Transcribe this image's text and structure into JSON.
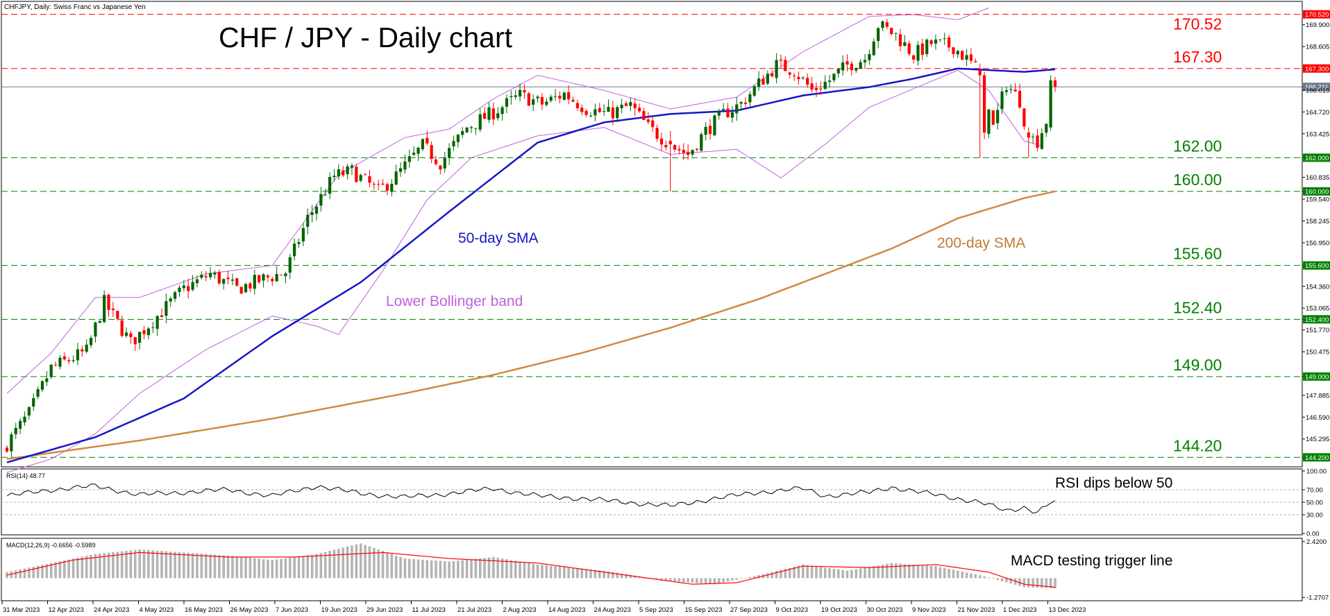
{
  "header": {
    "symbol_info": "CHFJPY, Daily: Swiss Franc vs Japanese Yen",
    "title": "CHF / JPY - Daily chart"
  },
  "colors": {
    "bull": "#006400",
    "bear": "#ff0000",
    "sma50": "#1515c8",
    "sma200": "#d08a40",
    "bollinger": "#c060e0",
    "support": "#008000",
    "resistance": "#ff0000",
    "rsi": "#000000",
    "macd_signal": "#ff0000",
    "macd_hist": "#b4b4b4",
    "current_price": "#6c7b8b"
  },
  "chart_data": [
    {
      "type": "line",
      "name": "price",
      "ylim": [
        143.8,
        171.0
      ],
      "grid": false,
      "y_ticks": [
        "170.520",
        "169.900",
        "168.605",
        "167.300",
        "166.211",
        "166.015",
        "164.720",
        "163.425",
        "162.000",
        "160.835",
        "160.000",
        "159.540",
        "158.245",
        "156.950",
        "155.600",
        "154.360",
        "153.065",
        "152.400",
        "151.770",
        "150.475",
        "149.000",
        "147.885",
        "146.590",
        "145.295",
        "144.200"
      ],
      "x_ticks": [
        "31 Mar 2023",
        "12 Apr 2023",
        "24 Apr 2023",
        "4 May 2023",
        "16 May 2023",
        "26 May 2023",
        "7 Jun 2023",
        "19 Jun 2023",
        "29 Jun 2023",
        "11 Jul 2023",
        "21 Jul 2023",
        "2 Aug 2023",
        "14 Aug 2023",
        "24 Aug 2023",
        "5 Sep 2023",
        "15 Sep 2023",
        "27 Sep 2023",
        "9 Oct 2023",
        "19 Oct 2023",
        "30 Oct 2023",
        "9 Nov 2023",
        "21 Nov 2023",
        "1 Dec 2023",
        "13 Dec 2023"
      ],
      "close_path": [
        [
          0,
          145.0
        ],
        [
          5,
          146.8
        ],
        [
          10,
          149.5
        ],
        [
          18,
          150.5
        ],
        [
          22,
          153.4
        ],
        [
          28,
          151.0
        ],
        [
          34,
          152.6
        ],
        [
          40,
          154.2
        ],
        [
          46,
          155.1
        ],
        [
          52,
          154.2
        ],
        [
          58,
          154.8
        ],
        [
          63,
          155.2
        ],
        [
          68,
          158.4
        ],
        [
          74,
          160.9
        ],
        [
          78,
          161.2
        ],
        [
          84,
          160.0
        ],
        [
          88,
          160.9
        ],
        [
          94,
          162.7
        ],
        [
          98,
          161.7
        ],
        [
          104,
          163.8
        ],
        [
          110,
          164.7
        ],
        [
          116,
          165.7
        ],
        [
          121,
          165.2
        ],
        [
          126,
          165.8
        ],
        [
          131,
          164.9
        ],
        [
          136,
          164.6
        ],
        [
          141,
          165.1
        ],
        [
          145,
          163.8
        ],
        [
          150,
          162.8
        ],
        [
          154,
          162.2
        ],
        [
          158,
          163.6
        ],
        [
          162,
          164.6
        ],
        [
          166,
          165.2
        ],
        [
          170,
          166.4
        ],
        [
          174,
          167.5
        ],
        [
          178,
          167.2
        ],
        [
          182,
          166.0
        ],
        [
          186,
          166.6
        ],
        [
          190,
          167.5
        ],
        [
          194,
          167.9
        ],
        [
          197,
          169.9
        ],
        [
          201,
          169.3
        ],
        [
          205,
          168.1
        ],
        [
          209,
          168.8
        ],
        [
          214,
          168.6
        ],
        [
          218,
          167.6
        ],
        [
          221,
          166.7
        ],
        [
          223,
          163.8
        ],
        [
          226,
          166.4
        ],
        [
          229,
          165.4
        ],
        [
          231,
          163.2
        ],
        [
          233,
          163.0
        ],
        [
          235,
          164.2
        ],
        [
          236,
          166.5
        ],
        [
          237,
          166.21
        ]
      ],
      "forced_candles": [
        {
          "i": 150,
          "o": 163.0,
          "h": 163.6,
          "l": 160.0,
          "c": 162.8
        },
        {
          "i": 220,
          "o": 167.2,
          "h": 167.6,
          "l": 162.0,
          "c": 166.9
        },
        {
          "i": 221,
          "o": 166.9,
          "h": 167.1,
          "l": 163.1,
          "c": 163.5
        },
        {
          "i": 231,
          "o": 163.5,
          "h": 163.8,
          "l": 162.0,
          "c": 163.2
        },
        {
          "i": 236,
          "o": 163.8,
          "h": 166.9,
          "l": 163.6,
          "c": 166.6
        },
        {
          "i": 237,
          "o": 166.6,
          "h": 166.8,
          "l": 165.9,
          "c": 166.21
        }
      ],
      "sma50_path": [
        [
          0,
          143.9
        ],
        [
          20,
          145.4
        ],
        [
          40,
          147.7
        ],
        [
          60,
          151.4
        ],
        [
          80,
          154.6
        ],
        [
          100,
          158.8
        ],
        [
          120,
          162.9
        ],
        [
          135,
          164.1
        ],
        [
          150,
          164.6
        ],
        [
          165,
          164.8
        ],
        [
          180,
          165.7
        ],
        [
          195,
          166.2
        ],
        [
          205,
          166.7
        ],
        [
          215,
          167.3
        ],
        [
          230,
          167.1
        ],
        [
          237,
          167.25
        ]
      ],
      "sma200_path": [
        [
          0,
          144.1
        ],
        [
          30,
          145.2
        ],
        [
          60,
          146.5
        ],
        [
          90,
          148.0
        ],
        [
          110,
          149.1
        ],
        [
          130,
          150.4
        ],
        [
          150,
          151.9
        ],
        [
          170,
          153.6
        ],
        [
          185,
          155.1
        ],
        [
          200,
          156.6
        ],
        [
          215,
          158.4
        ],
        [
          230,
          159.6
        ],
        [
          237,
          160.0
        ]
      ],
      "bollinger_upper_path": [
        [
          0,
          148.0
        ],
        [
          10,
          150.4
        ],
        [
          20,
          153.7
        ],
        [
          30,
          153.7
        ],
        [
          45,
          155.1
        ],
        [
          60,
          155.6
        ],
        [
          75,
          161.0
        ],
        [
          90,
          163.2
        ],
        [
          100,
          163.7
        ],
        [
          110,
          165.5
        ],
        [
          120,
          166.9
        ],
        [
          135,
          166.0
        ],
        [
          150,
          164.9
        ],
        [
          165,
          165.6
        ],
        [
          180,
          168.3
        ],
        [
          195,
          170.4
        ],
        [
          205,
          170.5
        ],
        [
          215,
          170.2
        ],
        [
          222,
          170.9
        ]
      ],
      "bollinger_lower_path": [
        [
          0,
          143.3
        ],
        [
          10,
          144.1
        ],
        [
          20,
          145.6
        ],
        [
          30,
          148.0
        ],
        [
          45,
          150.6
        ],
        [
          60,
          152.6
        ],
        [
          70,
          152.0
        ],
        [
          75,
          151.5
        ],
        [
          85,
          155.3
        ],
        [
          95,
          159.5
        ],
        [
          105,
          162.0
        ],
        [
          120,
          163.3
        ],
        [
          135,
          163.8
        ],
        [
          150,
          162.2
        ],
        [
          165,
          162.5
        ],
        [
          175,
          160.8
        ],
        [
          185,
          162.8
        ],
        [
          195,
          165.0
        ],
        [
          205,
          166.1
        ],
        [
          215,
          167.2
        ],
        [
          222,
          166.0
        ],
        [
          230,
          163.0
        ],
        [
          234,
          162.7
        ]
      ],
      "support_levels": [
        {
          "value": 144.2,
          "label": "144.20"
        },
        {
          "value": 149.0,
          "label": "149.00"
        },
        {
          "value": 152.4,
          "label": "152.40"
        },
        {
          "value": 155.6,
          "label": "155.60"
        },
        {
          "value": 160.0,
          "label": "160.00"
        },
        {
          "value": 162.0,
          "label": "162.00"
        }
      ],
      "resistance_levels": [
        {
          "value": 167.3,
          "label": "167.30"
        },
        {
          "value": 170.52,
          "label": "170.52"
        }
      ],
      "current_price": 166.211,
      "annotations": {
        "sma50": "50-day SMA",
        "sma200": "200-day SMA",
        "bollinger": "Lower Bollinger band"
      }
    },
    {
      "type": "line",
      "name": "rsi",
      "header": "RSI(14) 48.77",
      "ylim": [
        0,
        100
      ],
      "y_ticks": [
        "100.00",
        "70.00",
        "50.00",
        "30.00",
        "0.00"
      ],
      "levels": [
        70,
        50,
        30
      ],
      "annotation": "RSI dips below 50",
      "path": [
        [
          0,
          60
        ],
        [
          10,
          70
        ],
        [
          20,
          76
        ],
        [
          30,
          62
        ],
        [
          40,
          66
        ],
        [
          50,
          70
        ],
        [
          60,
          60
        ],
        [
          70,
          76
        ],
        [
          80,
          64
        ],
        [
          90,
          58
        ],
        [
          100,
          64
        ],
        [
          110,
          72
        ],
        [
          120,
          60
        ],
        [
          130,
          56
        ],
        [
          140,
          50
        ],
        [
          150,
          44
        ],
        [
          160,
          56
        ],
        [
          170,
          66
        ],
        [
          180,
          72
        ],
        [
          185,
          60
        ],
        [
          195,
          66
        ],
        [
          200,
          74
        ],
        [
          210,
          62
        ],
        [
          220,
          50
        ],
        [
          226,
          36
        ],
        [
          230,
          42
        ],
        [
          233,
          34
        ],
        [
          236,
          50
        ],
        [
          237,
          48.77
        ]
      ]
    },
    {
      "type": "bar",
      "name": "macd",
      "header": "MACD(12,26,9) -0.6656 -0.5989",
      "ylim": [
        -1.4,
        2.5
      ],
      "y_ticks": [
        "2.4200",
        "-1.2707"
      ],
      "annotation": "MACD testing trigger line",
      "hist_path": [
        [
          0,
          0.4
        ],
        [
          10,
          1.0
        ],
        [
          20,
          1.6
        ],
        [
          30,
          1.9
        ],
        [
          40,
          1.7
        ],
        [
          50,
          1.5
        ],
        [
          60,
          1.2
        ],
        [
          70,
          1.6
        ],
        [
          80,
          2.3
        ],
        [
          90,
          1.3
        ],
        [
          100,
          1.1
        ],
        [
          110,
          1.4
        ],
        [
          120,
          0.9
        ],
        [
          135,
          0.5
        ],
        [
          150,
          -0.2
        ],
        [
          160,
          -0.4
        ],
        [
          170,
          0.2
        ],
        [
          180,
          0.9
        ],
        [
          190,
          0.5
        ],
        [
          200,
          1.0
        ],
        [
          210,
          0.8
        ],
        [
          220,
          0.2
        ],
        [
          230,
          -0.6
        ],
        [
          237,
          -0.67
        ]
      ],
      "signal_path": [
        [
          0,
          0.2
        ],
        [
          15,
          1.2
        ],
        [
          30,
          1.7
        ],
        [
          50,
          1.4
        ],
        [
          65,
          1.4
        ],
        [
          85,
          1.7
        ],
        [
          100,
          1.3
        ],
        [
          120,
          1.0
        ],
        [
          140,
          0.2
        ],
        [
          155,
          -0.4
        ],
        [
          165,
          -0.3
        ],
        [
          180,
          0.8
        ],
        [
          195,
          0.7
        ],
        [
          210,
          0.9
        ],
        [
          222,
          0.4
        ],
        [
          230,
          -0.4
        ],
        [
          237,
          -0.6
        ]
      ]
    }
  ]
}
